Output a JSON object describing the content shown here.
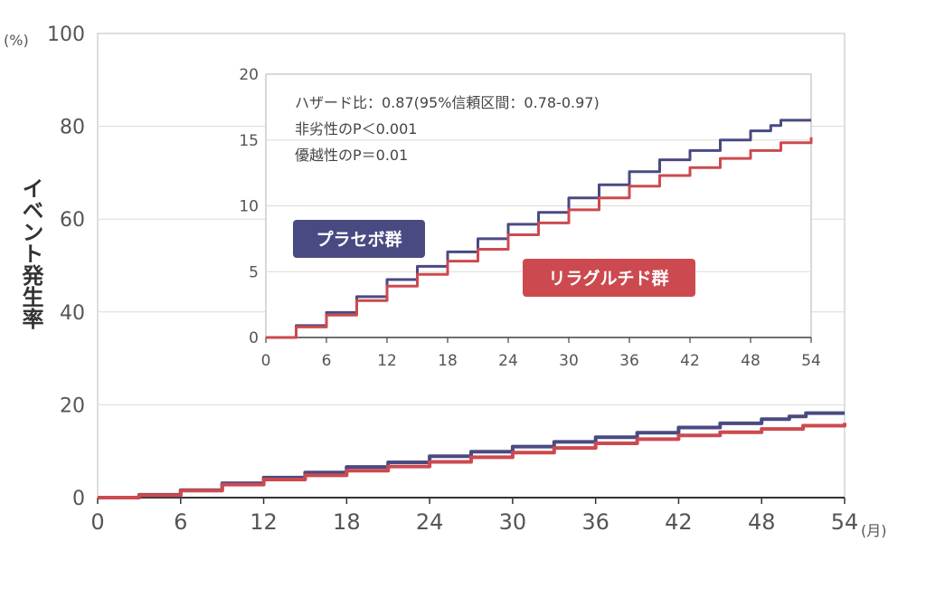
{
  "chart_data": [
    {
      "type": "line",
      "role": "main",
      "ylabel": "イベント発生率",
      "y_unit": "(%)",
      "x_unit": "(月)",
      "xlim": [
        0,
        54
      ],
      "ylim": [
        0,
        100
      ],
      "x_ticks": [
        "0",
        "6",
        "12",
        "18",
        "24",
        "30",
        "36",
        "42",
        "48",
        "54"
      ],
      "y_ticks": [
        "0",
        "20",
        "40",
        "60",
        "80",
        "100"
      ],
      "grid": true,
      "series": [
        {
          "name": "プラセボ群",
          "color": "#4a4a82",
          "points": [
            [
              0,
              0
            ],
            [
              3,
              0.6
            ],
            [
              6,
              1.6
            ],
            [
              9,
              3.1
            ],
            [
              12,
              4.3
            ],
            [
              15,
              5.4
            ],
            [
              18,
              6.6
            ],
            [
              21,
              7.6
            ],
            [
              24,
              8.9
            ],
            [
              27,
              9.9
            ],
            [
              30,
              11.0
            ],
            [
              33,
              12.0
            ],
            [
              36,
              13.0
            ],
            [
              39,
              14.0
            ],
            [
              42,
              15.1
            ],
            [
              45,
              16.0
            ],
            [
              48,
              16.9
            ],
            [
              50,
              17.5
            ],
            [
              51.2,
              18.2
            ],
            [
              54,
              18.2
            ]
          ]
        },
        {
          "name": "リラグルチド群",
          "color": "#cc4a4f",
          "points": [
            [
              0,
              0
            ],
            [
              3,
              0.5
            ],
            [
              6,
              1.5
            ],
            [
              9,
              2.8
            ],
            [
              12,
              3.9
            ],
            [
              15,
              4.8
            ],
            [
              18,
              5.8
            ],
            [
              21,
              6.7
            ],
            [
              24,
              7.7
            ],
            [
              27,
              8.7
            ],
            [
              30,
              9.7
            ],
            [
              33,
              10.7
            ],
            [
              36,
              11.7
            ],
            [
              39,
              12.6
            ],
            [
              42,
              13.4
            ],
            [
              45,
              14.1
            ],
            [
              48,
              14.8
            ],
            [
              51,
              15.5
            ],
            [
              54,
              16.1
            ]
          ]
        }
      ]
    },
    {
      "type": "line",
      "role": "inset",
      "xlim": [
        0,
        54
      ],
      "ylim": [
        0,
        20
      ],
      "x_ticks": [
        "0",
        "6",
        "12",
        "18",
        "24",
        "30",
        "36",
        "42",
        "48",
        "54"
      ],
      "y_ticks": [
        "0",
        "5",
        "10",
        "15",
        "20"
      ],
      "grid": true,
      "annotations": [
        "ハザード比：0.87(95%信頼区間：0.78-0.97)",
        "非劣性のP＜0.001",
        "優越性のP＝0.01"
      ],
      "legend": {
        "placebo": "プラセボ群",
        "liraglutide": "リラグルチド群"
      },
      "series": [
        {
          "name": "プラセボ群",
          "color": "#4a4a82",
          "points": [
            [
              0,
              0
            ],
            [
              3,
              0.9
            ],
            [
              6,
              1.9
            ],
            [
              9,
              3.1
            ],
            [
              12,
              4.4
            ],
            [
              15,
              5.4
            ],
            [
              18,
              6.5
            ],
            [
              21,
              7.5
            ],
            [
              24,
              8.6
            ],
            [
              27,
              9.5
            ],
            [
              30,
              10.6
            ],
            [
              33,
              11.6
            ],
            [
              36,
              12.6
            ],
            [
              39,
              13.5
            ],
            [
              42,
              14.2
            ],
            [
              45,
              15.0
            ],
            [
              48,
              15.7
            ],
            [
              50,
              16.1
            ],
            [
              51,
              16.5
            ],
            [
              54,
              16.5
            ]
          ]
        },
        {
          "name": "リラグルチド群",
          "color": "#cc4a4f",
          "points": [
            [
              0,
              0
            ],
            [
              3,
              0.8
            ],
            [
              6,
              1.7
            ],
            [
              9,
              2.8
            ],
            [
              12,
              3.9
            ],
            [
              15,
              4.8
            ],
            [
              18,
              5.8
            ],
            [
              21,
              6.7
            ],
            [
              24,
              7.8
            ],
            [
              27,
              8.7
            ],
            [
              30,
              9.7
            ],
            [
              33,
              10.6
            ],
            [
              36,
              11.5
            ],
            [
              39,
              12.3
            ],
            [
              42,
              12.9
            ],
            [
              45,
              13.6
            ],
            [
              48,
              14.2
            ],
            [
              51,
              14.8
            ],
            [
              54,
              15.2
            ]
          ]
        }
      ]
    }
  ]
}
